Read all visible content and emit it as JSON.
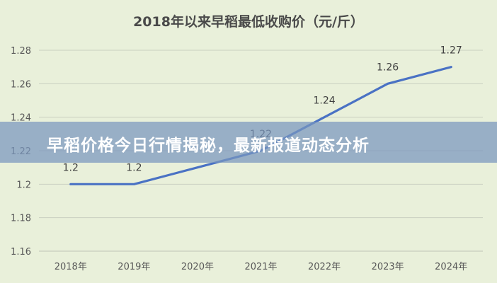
{
  "chart_data": {
    "type": "line",
    "title": "2018年以来早稻最低收购价（元/斤）",
    "categories": [
      "2018年",
      "2019年",
      "2020年",
      "2021年",
      "2022年",
      "2023年",
      "2024年"
    ],
    "series": [
      {
        "values": [
          1.2,
          1.2,
          1.21,
          1.22,
          1.24,
          1.26,
          1.27
        ]
      }
    ],
    "data_labels": [
      "1.2",
      "1.2",
      "",
      "1.22",
      "1.24",
      "1.26",
      "1.27"
    ],
    "y_ticks": [
      "1.28",
      "1.26",
      "1.24",
      "1.22",
      "1.2",
      "1.18",
      "1.16"
    ],
    "ylim": [
      1.16,
      1.28
    ],
    "grid": true,
    "line_color": "#4a72c4"
  },
  "banner": {
    "text": "早稻价格今日行情揭秘，最新报道动态分析"
  }
}
